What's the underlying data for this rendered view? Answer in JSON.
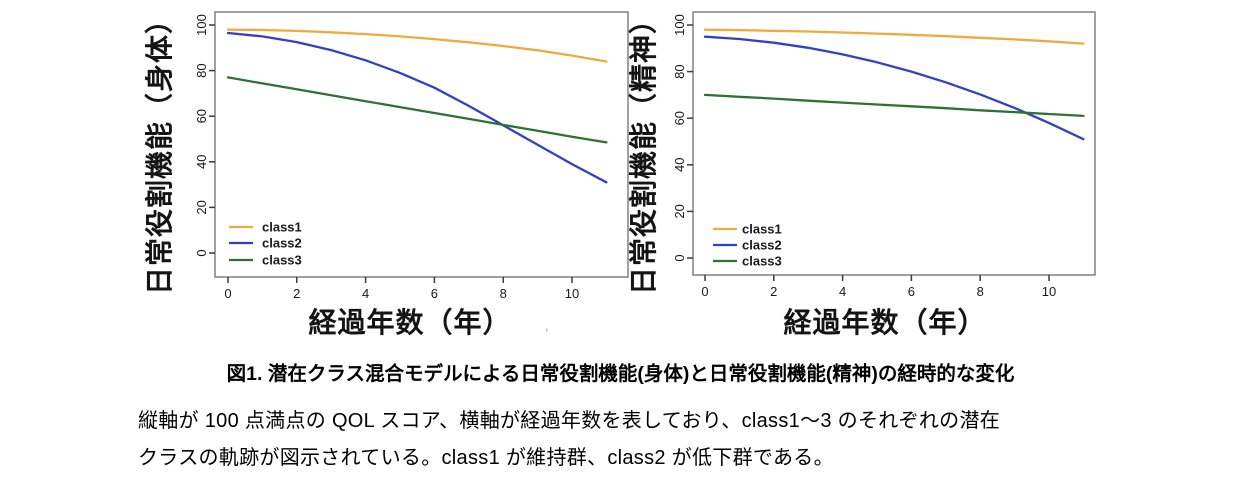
{
  "figure": {
    "caption_title": "図1.  潜在クラス混合モデルによる日常役割機能(身体)と日常役割機能(精神)の経時的な変化",
    "caption_body_line1": "縦軸が 100 点満点の QOL スコア、横軸が経過年数を表しており、class1～3 のそれぞれの潜在",
    "caption_body_line2": "クラスの軌跡が図示されている。class1 が維持群、class2 が低下群である。",
    "stray_mark": ","
  },
  "colors": {
    "class1": "#F0A93F",
    "class2": "#3241C4",
    "class3": "#2E7233",
    "axis_box": "#808080",
    "tick": "#3a3a3a"
  },
  "chart_data": [
    {
      "type": "line",
      "title": "",
      "ylabel": "日常役割機能（身体）",
      "xlabel": "経過年数（年）",
      "xlim": [
        0,
        11
      ],
      "ylim": [
        0,
        100
      ],
      "xticks": [
        0,
        2,
        4,
        6,
        8,
        10
      ],
      "yticks": [
        0,
        20,
        40,
        60,
        80,
        100
      ],
      "grid": false,
      "legend_position": "bottom-left",
      "x": [
        0,
        1,
        2,
        3,
        4,
        5,
        6,
        7,
        8,
        9,
        10,
        11
      ],
      "series": [
        {
          "name": "class1",
          "color": "#F0A93F",
          "values": [
            98.0,
            97.8,
            97.4,
            96.8,
            96.0,
            95.0,
            93.8,
            92.4,
            90.8,
            88.9,
            86.6,
            84.0
          ]
        },
        {
          "name": "class2",
          "color": "#3241C4",
          "values": [
            96.5,
            95.0,
            92.5,
            89.0,
            84.5,
            79.0,
            72.5,
            64.5,
            56.0,
            47.5,
            39.0,
            31.0
          ]
        },
        {
          "name": "class3",
          "color": "#2E7233",
          "values": [
            77.0,
            74.4,
            71.8,
            69.2,
            66.6,
            64.0,
            61.4,
            58.8,
            56.2,
            53.6,
            51.0,
            48.5
          ]
        }
      ]
    },
    {
      "type": "line",
      "title": "",
      "ylabel": "日常役割機能（精神）",
      "xlabel": "経過年数（年）",
      "xlim": [
        0,
        11
      ],
      "ylim": [
        0,
        100
      ],
      "xticks": [
        0,
        2,
        4,
        6,
        8,
        10
      ],
      "yticks": [
        0,
        20,
        40,
        60,
        80,
        100
      ],
      "grid": false,
      "legend_position": "bottom-left",
      "x": [
        0,
        1,
        2,
        3,
        4,
        5,
        6,
        7,
        8,
        9,
        10,
        11
      ],
      "series": [
        {
          "name": "class1",
          "color": "#F0A93F",
          "values": [
            98.0,
            97.8,
            97.5,
            97.2,
            96.8,
            96.3,
            95.8,
            95.2,
            94.5,
            93.8,
            93.0,
            92.0
          ]
        },
        {
          "name": "class2",
          "color": "#3241C4",
          "values": [
            95.0,
            94.0,
            92.4,
            90.2,
            87.4,
            84.0,
            80.0,
            75.4,
            70.2,
            64.4,
            58.0,
            51.0
          ]
        },
        {
          "name": "class3",
          "color": "#2E7233",
          "values": [
            70.0,
            69.2,
            68.4,
            67.5,
            66.7,
            65.9,
            65.1,
            64.3,
            63.4,
            62.6,
            61.8,
            61.0
          ]
        }
      ]
    }
  ]
}
